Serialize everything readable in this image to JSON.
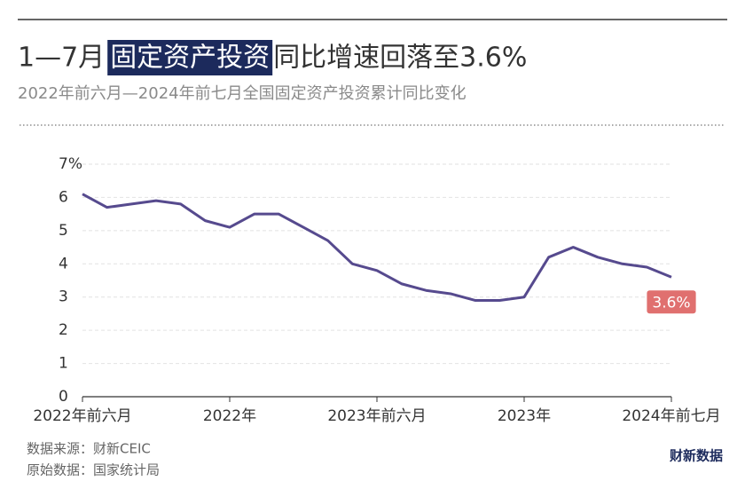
{
  "chart_data": {
    "type": "line",
    "title": [
      "1—7月",
      "固定资产投资",
      "同比增速回落至3.6%"
    ],
    "subtitle": "2022年前六月—2024年前七月全国固定资产投资累计同比变化",
    "categories": [
      "2022年前六月",
      null,
      null,
      null,
      null,
      null,
      "2022年",
      null,
      null,
      null,
      null,
      null,
      "2023年前六月",
      null,
      null,
      null,
      null,
      null,
      "2023年",
      null,
      null,
      null,
      null,
      null,
      "2024年前七月"
    ],
    "series": [
      {
        "name": null,
        "color": "#564a8e",
        "values": [
          6.1,
          5.7,
          5.8,
          5.9,
          5.8,
          5.3,
          5.1,
          5.5,
          5.5,
          5.1,
          4.7,
          4.0,
          3.8,
          3.4,
          3.2,
          3.1,
          2.9,
          2.9,
          3.0,
          4.2,
          4.5,
          4.2,
          4.0,
          3.9,
          3.6
        ],
        "value_labels": [
          null,
          null,
          null,
          null,
          null,
          null,
          null,
          null,
          null,
          null,
          null,
          null,
          null,
          null,
          null,
          null,
          null,
          null,
          null,
          null,
          null,
          null,
          null,
          null,
          "3.6%"
        ]
      }
    ],
    "ylim": [
      0,
      7
    ],
    "yticks": [
      0,
      1,
      2,
      3,
      4,
      5,
      6,
      {
        "value": 7,
        "label": "7%"
      }
    ],
    "grid": true,
    "sources": [
      "数据来源：财新CEIC",
      "原始数据：国家统计局"
    ],
    "logo": "财新数据"
  }
}
